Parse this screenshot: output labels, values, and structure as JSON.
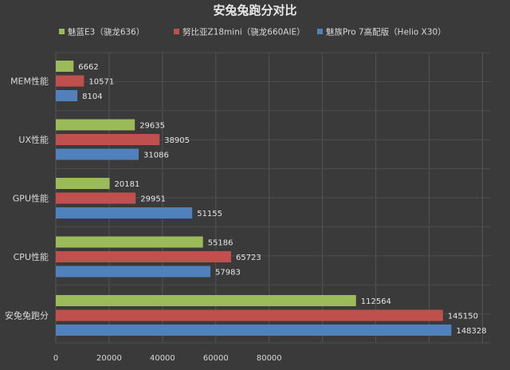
{
  "chart_data": {
    "type": "bar",
    "orientation": "horizontal",
    "title": "安兔兔跑分对比",
    "categories": [
      "MEM性能",
      "UX性能",
      "GPU性能",
      "CPU性能",
      "安兔兔跑分"
    ],
    "series": [
      {
        "name": "魅蓝E3（骁龙636）",
        "color": "#9bbb59",
        "values": [
          6662,
          29635,
          20181,
          55186,
          112564
        ]
      },
      {
        "name": "努比亚Z18mini（骁龙660AIE）",
        "color": "#c0504d",
        "values": [
          10571,
          38905,
          29951,
          65723,
          145150
        ]
      },
      {
        "name": "魅族Pro 7高配版（Helio X30）",
        "color": "#4f81bd",
        "values": [
          8104,
          31086,
          51155,
          57983,
          148328
        ]
      }
    ],
    "x_ticks": [
      "0",
      "20000",
      "40000",
      "60000",
      "80000"
    ],
    "xlim": [
      0,
      160000
    ],
    "grid": true,
    "legend_position": "top",
    "background_color": "#3a3a3a"
  }
}
